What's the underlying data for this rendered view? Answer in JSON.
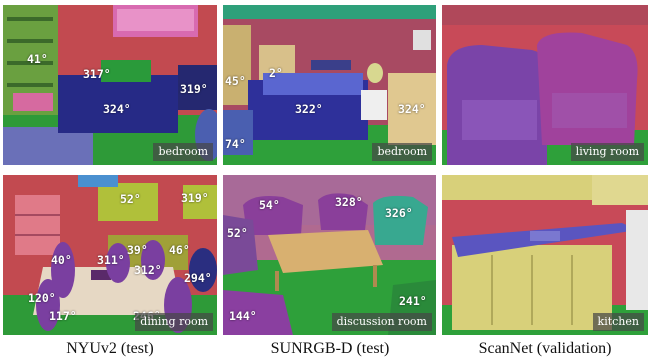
{
  "columns": [
    {
      "caption": "NYUv2 (test)"
    },
    {
      "caption": "SUNRGB-D (test)"
    },
    {
      "caption": "ScanNet (validation)"
    }
  ],
  "panels": {
    "nyu_top": {
      "scene": "bedroom",
      "angles": [
        "41°",
        "317°",
        "319°",
        "324°"
      ]
    },
    "sun_top": {
      "scene": "bedroom",
      "angles": [
        "45°",
        "2°",
        "322°",
        "324°",
        "74°"
      ]
    },
    "scan_top": {
      "scene": "living room"
    },
    "nyu_bottom": {
      "scene": "dining room",
      "angles": [
        "52°",
        "319°",
        "39°",
        "46°",
        "40°",
        "311°",
        "312°",
        "294°",
        "120°",
        "117°",
        "246°"
      ]
    },
    "sun_bottom": {
      "scene": "discussion room",
      "angles": [
        "54°",
        "328°",
        "326°",
        "52°",
        "241°",
        "144°"
      ]
    },
    "scan_bottom": {
      "scene": "kitchen"
    }
  },
  "colors": {
    "wall": "#c8505a",
    "floor": "#2fa83a",
    "bed": "#2c2e8c",
    "chair": "#8a3fa0",
    "cabinet": "#d8d07a",
    "table": "#b89060",
    "counter": "#5a55c0"
  }
}
